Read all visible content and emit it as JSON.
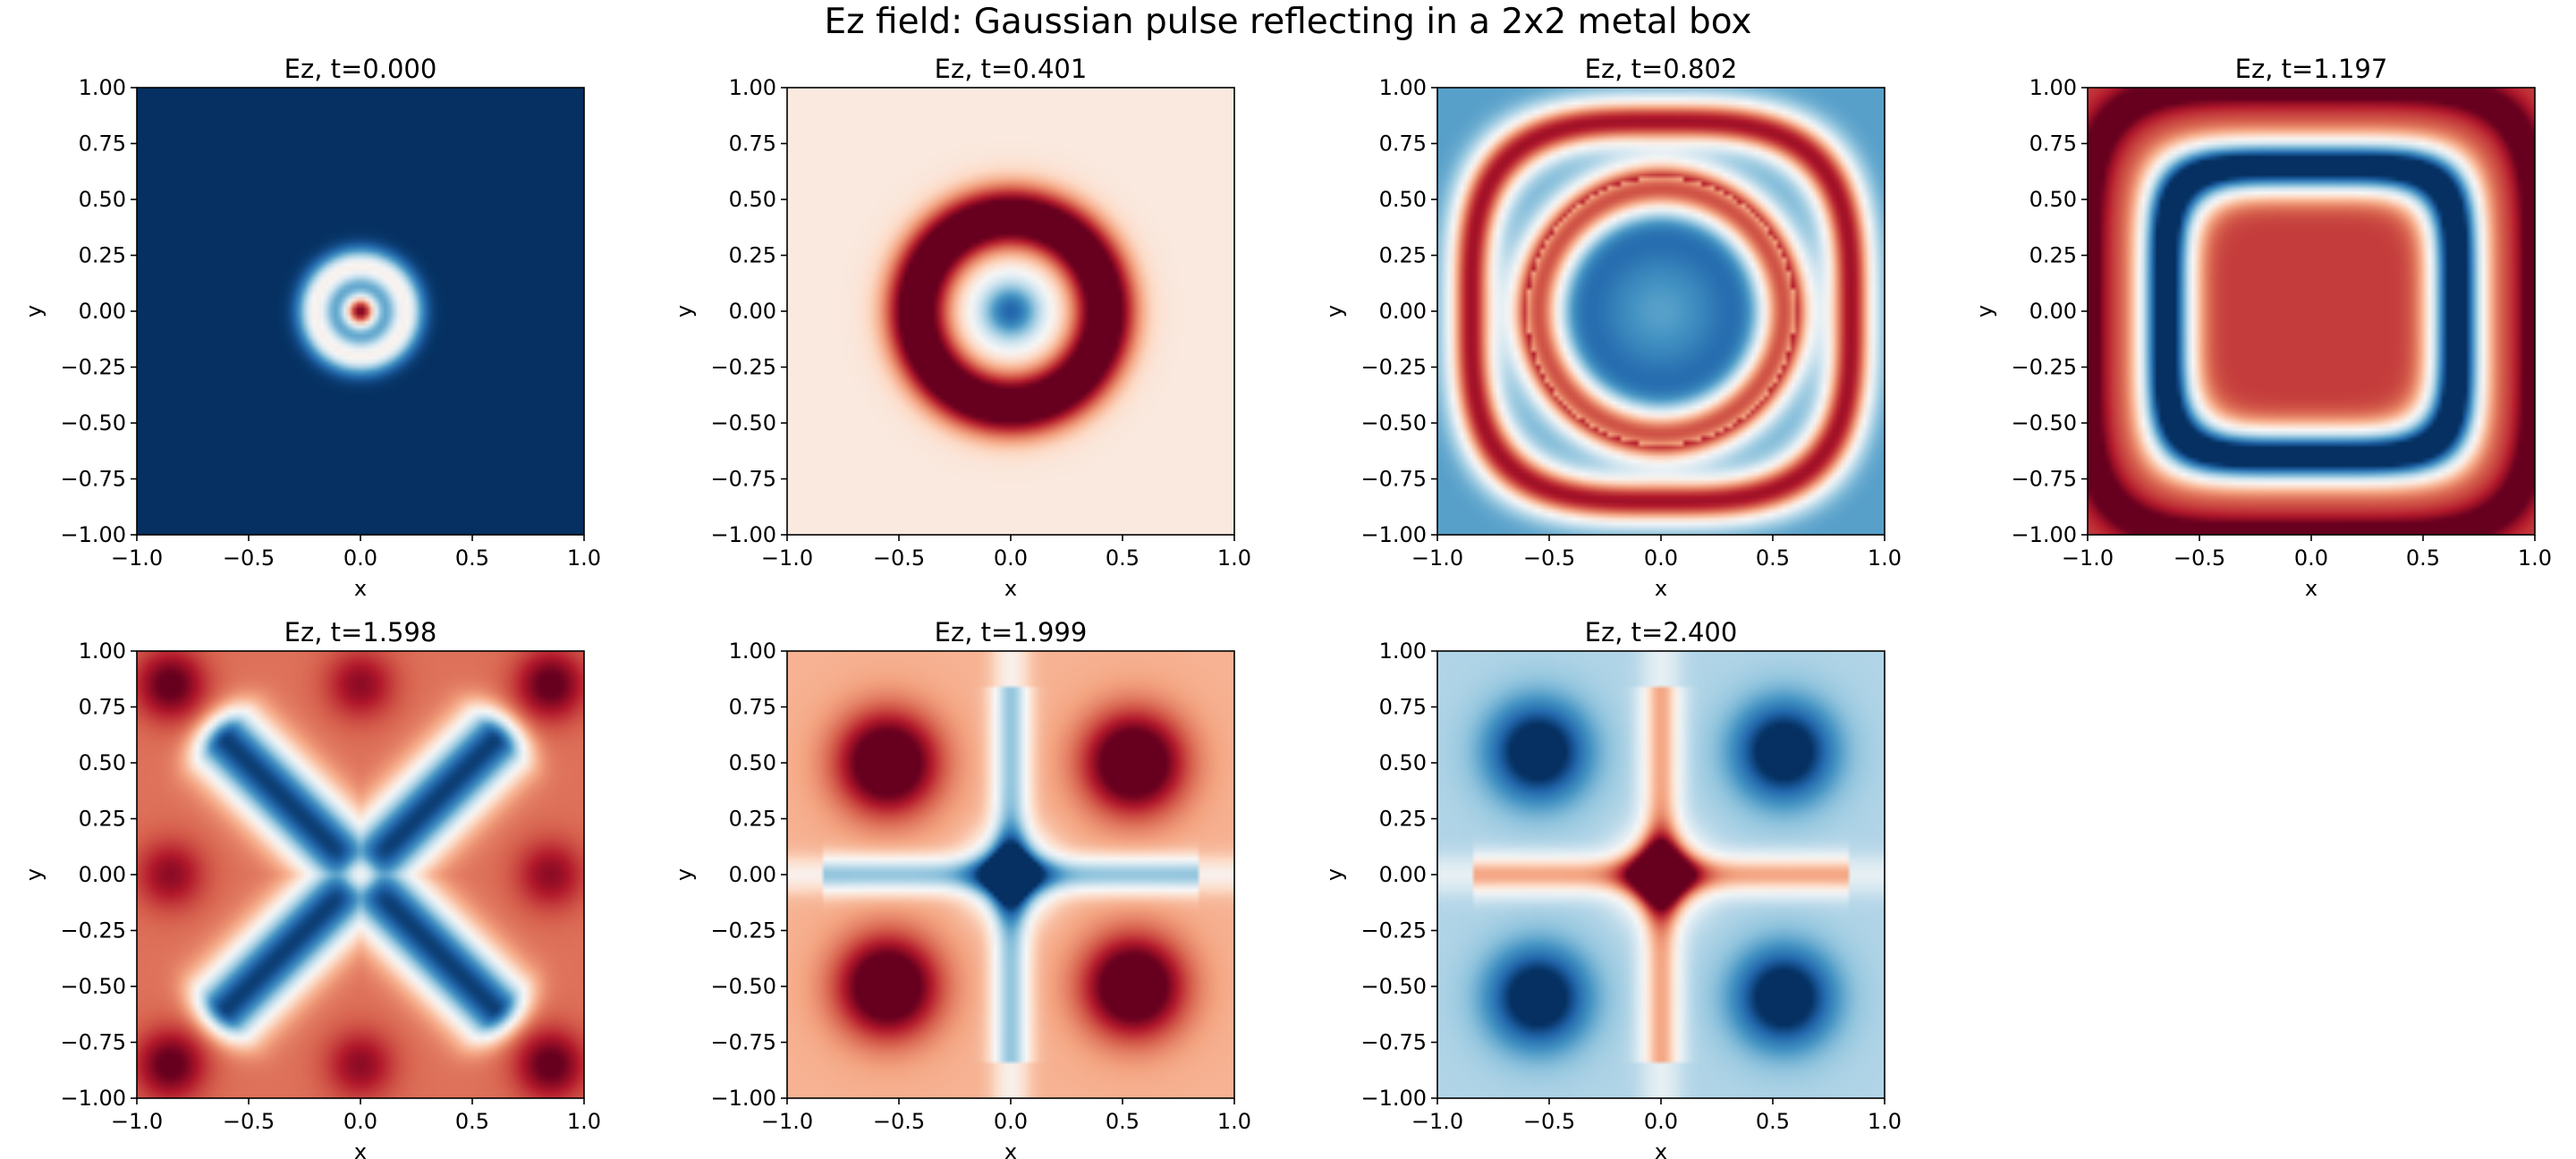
{
  "figure": {
    "title": "Ez field: Gaussian pulse reflecting in a 2x2 metal box",
    "colormap": "RdBu_r",
    "colormap_colors": [
      "#053061",
      "#2166ac",
      "#4393c3",
      "#92c5de",
      "#d1e5f0",
      "#f7f7f7",
      "#fddbc7",
      "#f4a582",
      "#d6604d",
      "#b2182b",
      "#67001f"
    ]
  },
  "chart_data": [
    {
      "type": "heatmap",
      "title": "Ez, t=0.000",
      "xlabel": "x",
      "ylabel": "y",
      "xlim": [
        -1.0,
        1.0
      ],
      "ylim": [
        -1.0,
        1.0
      ],
      "xticks": [
        "−1.0",
        "−0.5",
        "0.0",
        "0.5",
        "1.0"
      ],
      "yticks": [
        "1.00",
        "0.75",
        "0.50",
        "0.25",
        "0.00",
        "−0.25",
        "−0.50",
        "−0.75",
        "−1.00"
      ],
      "field": {
        "background": -1.0,
        "peak_center": 1.0,
        "ring_radius": 0.2,
        "pattern": "centered gaussian pulse: red core, white ring, uniform dark blue elsewhere"
      }
    },
    {
      "type": "heatmap",
      "title": "Ez, t=0.401",
      "xlabel": "x",
      "ylabel": "y",
      "xlim": [
        -1.0,
        1.0
      ],
      "ylim": [
        -1.0,
        1.0
      ],
      "xticks": [
        "−1.0",
        "−0.5",
        "0.0",
        "0.5",
        "1.0"
      ],
      "yticks": [
        "1.00",
        "0.75",
        "0.50",
        "0.25",
        "0.00",
        "−0.25",
        "−0.50",
        "−0.75",
        "−1.00"
      ],
      "field": {
        "center": -0.8,
        "ring_radius": 0.4,
        "ring_value": 1.0,
        "background": 0.1,
        "pattern": "expanding circular ring"
      }
    },
    {
      "type": "heatmap",
      "title": "Ez, t=0.802",
      "xlabel": "x",
      "ylabel": "y",
      "xlim": [
        -1.0,
        1.0
      ],
      "ylim": [
        -1.0,
        1.0
      ],
      "xticks": [
        "−1.0",
        "−0.5",
        "0.0",
        "0.5",
        "1.0"
      ],
      "yticks": [
        "1.00",
        "0.75",
        "0.50",
        "0.25",
        "0.00",
        "−0.25",
        "−0.50",
        "−0.75",
        "−1.00"
      ],
      "field": {
        "center": -0.6,
        "ring_radius": 0.75,
        "ring_value": 1.0,
        "pattern": "ring reaching walls, blue disk inside"
      }
    },
    {
      "type": "heatmap",
      "title": "Ez, t=1.197",
      "xlabel": "x",
      "ylabel": "y",
      "xlim": [
        -1.0,
        1.0
      ],
      "ylim": [
        -1.0,
        1.0
      ],
      "xticks": [
        "−1.0",
        "−0.5",
        "0.0",
        "0.5",
        "1.0"
      ],
      "yticks": [
        "1.00",
        "0.75",
        "0.50",
        "0.25",
        "0.00",
        "−0.25",
        "−0.50",
        "−0.75",
        "−1.00"
      ],
      "field": {
        "center": 0.7,
        "square_band_radius": 0.65,
        "band_value": -1.0,
        "pattern": "red square center, blue square band, red border"
      }
    },
    {
      "type": "heatmap",
      "title": "Ez, t=1.598",
      "xlabel": "x",
      "ylabel": "y",
      "xlim": [
        -1.0,
        1.0
      ],
      "ylim": [
        -1.0,
        1.0
      ],
      "xticks": [
        "−1.0",
        "−0.5",
        "0.0",
        "0.5",
        "1.0"
      ],
      "yticks": [
        "1.00",
        "0.75",
        "0.50",
        "0.25",
        "0.00",
        "−0.25",
        "−0.50",
        "−0.75",
        "−1.00"
      ],
      "field": {
        "center": -0.3,
        "pattern": "blue X-shaped cross, red corners and edges"
      }
    },
    {
      "type": "heatmap",
      "title": "Ez, t=1.999",
      "xlabel": "x",
      "ylabel": "y",
      "xlim": [
        -1.0,
        1.0
      ],
      "ylim": [
        -1.0,
        1.0
      ],
      "xticks": [
        "−1.0",
        "−0.5",
        "0.0",
        "0.5",
        "1.0"
      ],
      "yticks": [
        "1.00",
        "0.75",
        "0.50",
        "0.25",
        "0.00",
        "−0.25",
        "−0.50",
        "−0.75",
        "−1.00"
      ],
      "field": {
        "center": -0.9,
        "lobe_centers": [
          [
            -0.55,
            0.5
          ],
          [
            0.55,
            0.5
          ],
          [
            -0.55,
            -0.5
          ],
          [
            0.55,
            -0.5
          ]
        ],
        "lobe_value": 1.0,
        "pattern": "blue plus at center, four red lobes"
      }
    },
    {
      "type": "heatmap",
      "title": "Ez, t=2.400",
      "xlabel": "x",
      "ylabel": "y",
      "xlim": [
        -1.0,
        1.0
      ],
      "ylim": [
        -1.0,
        1.0
      ],
      "xticks": [
        "−1.0",
        "−0.5",
        "0.0",
        "0.5",
        "1.0"
      ],
      "yticks": [
        "1.00",
        "0.75",
        "0.50",
        "0.25",
        "0.00",
        "−0.25",
        "−0.50",
        "−0.75",
        "−1.00"
      ],
      "field": {
        "center": 1.0,
        "lobe_centers": [
          [
            -0.55,
            0.55
          ],
          [
            0.55,
            0.55
          ],
          [
            -0.55,
            -0.55
          ],
          [
            0.55,
            -0.55
          ]
        ],
        "lobe_value": -0.9,
        "pattern": "red plus/star at center, four blue lobes"
      }
    }
  ]
}
